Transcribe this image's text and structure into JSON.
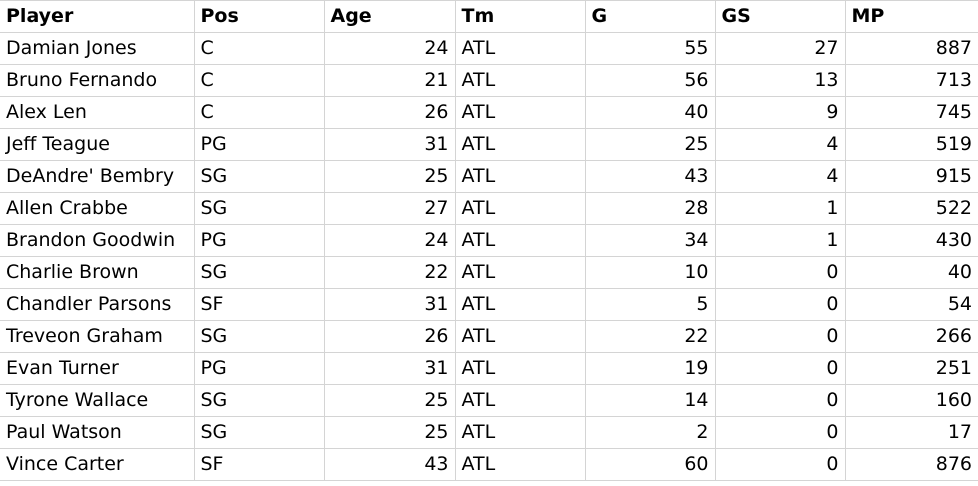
{
  "sheet": {
    "headers": [
      "Player",
      "Pos",
      "Age",
      "Tm",
      "G",
      "GS",
      "MP"
    ],
    "rows": [
      {
        "player": "Damian Jones",
        "pos": "C",
        "age": "24",
        "tm": "ATL",
        "g": "55",
        "gs": "27",
        "mp": "887"
      },
      {
        "player": "Bruno Fernando",
        "pos": "C",
        "age": "21",
        "tm": "ATL",
        "g": "56",
        "gs": "13",
        "mp": "713"
      },
      {
        "player": "Alex Len",
        "pos": "C",
        "age": "26",
        "tm": "ATL",
        "g": "40",
        "gs": "9",
        "mp": "745"
      },
      {
        "player": "Jeff Teague",
        "pos": "PG",
        "age": "31",
        "tm": "ATL",
        "g": "25",
        "gs": "4",
        "mp": "519"
      },
      {
        "player": "DeAndre' Bembry",
        "pos": "SG",
        "age": "25",
        "tm": "ATL",
        "g": "43",
        "gs": "4",
        "mp": "915"
      },
      {
        "player": "Allen Crabbe",
        "pos": "SG",
        "age": "27",
        "tm": "ATL",
        "g": "28",
        "gs": "1",
        "mp": "522"
      },
      {
        "player": "Brandon Goodwin",
        "pos": "PG",
        "age": "24",
        "tm": "ATL",
        "g": "34",
        "gs": "1",
        "mp": "430"
      },
      {
        "player": "Charlie Brown",
        "pos": "SG",
        "age": "22",
        "tm": "ATL",
        "g": "10",
        "gs": "0",
        "mp": "40"
      },
      {
        "player": "Chandler Parsons",
        "pos": "SF",
        "age": "31",
        "tm": "ATL",
        "g": "5",
        "gs": "0",
        "mp": "54"
      },
      {
        "player": "Treveon Graham",
        "pos": "SG",
        "age": "26",
        "tm": "ATL",
        "g": "22",
        "gs": "0",
        "mp": "266"
      },
      {
        "player": "Evan Turner",
        "pos": "PG",
        "age": "31",
        "tm": "ATL",
        "g": "19",
        "gs": "0",
        "mp": "251"
      },
      {
        "player": "Tyrone Wallace",
        "pos": "SG",
        "age": "25",
        "tm": "ATL",
        "g": "14",
        "gs": "0",
        "mp": "160"
      },
      {
        "player": "Paul Watson",
        "pos": "SG",
        "age": "25",
        "tm": "ATL",
        "g": "2",
        "gs": "0",
        "mp": "17"
      },
      {
        "player": "Vince Carter",
        "pos": "SF",
        "age": "43",
        "tm": "ATL",
        "g": "60",
        "gs": "0",
        "mp": "876"
      }
    ]
  }
}
